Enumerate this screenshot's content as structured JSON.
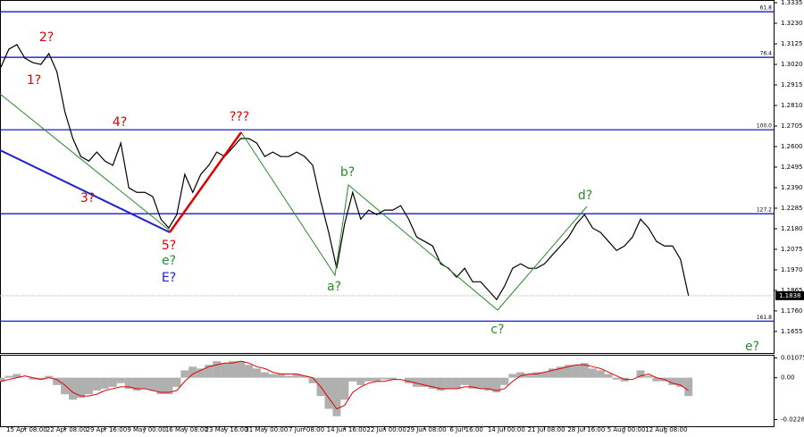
{
  "chart_data": [
    {
      "type": "line",
      "color": "#000000",
      "values": [
        1.3006,
        1.3098,
        1.3121,
        1.3052,
        1.3029,
        1.302,
        1.3075,
        1.2983,
        1.2778,
        1.2641,
        1.2549,
        1.2526,
        1.2572,
        1.2526,
        1.2504,
        1.2618,
        1.2389,
        1.2366,
        1.2366,
        1.2344,
        1.2229,
        1.2184,
        1.2252,
        1.2458,
        1.2366,
        1.2458,
        1.2504,
        1.2572,
        1.2549,
        1.2595,
        1.2641,
        1.2641,
        1.2618,
        1.2549,
        1.2572,
        1.2549,
        1.2549,
        1.2572,
        1.2549,
        1.2504,
        1.2321,
        1.2161,
        1.1978,
        1.2206,
        1.2366,
        1.2229,
        1.2275,
        1.2252,
        1.2275,
        1.2275,
        1.2298,
        1.2229,
        1.2138,
        1.2115,
        1.2092,
        1.2001,
        1.1978,
        1.1932,
        1.1978,
        1.1909,
        1.1909,
        1.1864,
        1.1818,
        1.1887,
        1.1978,
        1.2001,
        1.1978,
        1.1978,
        1.2001,
        1.2047,
        1.2092,
        1.2138,
        1.2206,
        1.2252,
        1.2184,
        1.2161,
        1.2115,
        1.2069,
        1.2092,
        1.2138,
        1.2229,
        1.2184,
        1.2115,
        1.2092,
        1.2092,
        1.2024,
        1.1838
      ],
      "ylim": [
        1.1545,
        1.3349
      ],
      "yticks": [
        1.3335,
        {
          "value": 1.323,
          "label": "1.3230"
        },
        1.3125,
        {
          "value": 1.302,
          "label": "1.3020"
        },
        1.2915,
        {
          "value": 1.281,
          "label": "1.2810"
        },
        1.2705,
        {
          "value": 1.26,
          "label": "1.2600"
        },
        1.2495,
        {
          "value": 1.239,
          "label": "1.2390"
        },
        1.2285,
        {
          "value": 1.218,
          "label": "1.2180"
        },
        1.2075,
        {
          "value": 1.197,
          "label": "1.1970"
        },
        1.1865,
        {
          "value": 1.176,
          "label": "1.1760"
        },
        1.1655
      ],
      "current_price": 1.1838,
      "levels": [
        {
          "label": "61.8",
          "value": 1.3289
        },
        {
          "label": "76.4",
          "value": 1.3056
        },
        {
          "label": "100.0",
          "value": 1.2686
        },
        {
          "label": "127.2",
          "value": 1.2257
        },
        {
          "label": "161.8",
          "value": 1.1708
        }
      ],
      "level_color": "#0000cc",
      "annotations": [
        {
          "text": "1?",
          "color": "#e00000"
        },
        {
          "text": "2?",
          "color": "#e00000"
        },
        {
          "text": "3?",
          "color": "#e00000"
        },
        {
          "text": "4?",
          "color": "#e00000"
        },
        {
          "text": "5?",
          "color": "#e00000"
        },
        {
          "text": "e?",
          "color": "#2a8a2a"
        },
        {
          "text": "E?",
          "color": "#2020d0"
        },
        {
          "text": "???",
          "color": "#e00000"
        },
        {
          "text": "a?",
          "color": "#2a8a2a"
        },
        {
          "text": "b?",
          "color": "#2a8a2a"
        },
        {
          "text": "c?",
          "color": "#2a8a2a"
        },
        {
          "text": "d?",
          "color": "#2a8a2a"
        },
        {
          "text": "e?",
          "color": "#2a8a2a"
        }
      ]
    },
    {
      "type": "bar",
      "color": "#b0b0b0",
      "signal_color": "#e00000",
      "categories": [
        null,
        null,
        null,
        "15 Apr 08:00",
        null,
        null,
        null,
        null,
        "22 Apr 08:00",
        null,
        null,
        null,
        null,
        "29 Apr 16:00",
        null,
        null,
        null,
        null,
        "9 May 00:00",
        null,
        null,
        null,
        null,
        "16 May 08:00",
        null,
        null,
        null,
        null,
        "23 May 16:00",
        null,
        null,
        null,
        null,
        "31 May 00:00",
        null,
        null,
        null,
        null,
        "7 Jun 08:00",
        null,
        null,
        null,
        null,
        "14 Jun 16:00",
        null,
        null,
        null,
        null,
        "22 Jun 00:00",
        null,
        null,
        null,
        null,
        "29 Jun 08:00",
        null,
        null,
        null,
        null,
        "6 Jul 16:00",
        null,
        null,
        null,
        null,
        "14 Jul 00:00",
        null,
        null,
        null,
        null,
        "21 Jul 08:00",
        null,
        null,
        null,
        null,
        "28 Jul 16:00",
        null,
        null,
        null,
        null,
        "5 Aug 00:00",
        null,
        null,
        null,
        null,
        "12 Aug 08:00",
        null,
        null,
        null
      ],
      "values": [
        -0.002,
        0.001,
        0.002,
        0.0,
        -0.001,
        -0.001,
        0.001,
        -0.004,
        -0.009,
        -0.012,
        -0.011,
        -0.009,
        -0.007,
        -0.006,
        -0.005,
        -0.003,
        -0.006,
        -0.007,
        -0.006,
        -0.007,
        -0.009,
        -0.009,
        -0.005,
        0.004,
        0.006,
        0.005,
        0.007,
        0.009,
        0.008,
        0.009,
        0.009,
        0.007,
        0.005,
        0.003,
        0.002,
        0.002,
        0.001,
        0.002,
        0.001,
        -0.003,
        -0.01,
        -0.017,
        -0.021,
        -0.012,
        -0.002,
        -0.004,
        -0.002,
        -0.002,
        -0.001,
        -0.001,
        0.0,
        -0.003,
        -0.005,
        -0.005,
        -0.006,
        -0.007,
        -0.006,
        -0.006,
        -0.004,
        -0.006,
        -0.006,
        -0.007,
        -0.008,
        -0.004,
        0.002,
        0.003,
        0.002,
        0.003,
        0.003,
        0.005,
        0.006,
        0.007,
        0.007,
        0.008,
        0.005,
        0.004,
        0.002,
        -0.001,
        -0.002,
        0.0,
        0.004,
        0.001,
        -0.002,
        -0.002,
        -0.004,
        -0.005,
        -0.01
      ],
      "signal_values": [
        -0.002,
        -0.001,
        0.0,
        0.001,
        0.0,
        -0.001,
        0.0,
        -0.001,
        -0.004,
        -0.008,
        -0.01,
        -0.01,
        -0.009,
        -0.007,
        -0.006,
        -0.005,
        -0.005,
        -0.006,
        -0.006,
        -0.007,
        -0.008,
        -0.008,
        -0.007,
        -0.002,
        0.002,
        0.004,
        0.006,
        0.007,
        0.008,
        0.008,
        0.009,
        0.008,
        0.006,
        0.005,
        0.003,
        0.002,
        0.002,
        0.002,
        0.001,
        0.0,
        -0.005,
        -0.011,
        -0.017,
        -0.015,
        -0.008,
        -0.005,
        -0.003,
        -0.002,
        -0.002,
        -0.001,
        -0.001,
        -0.002,
        -0.003,
        -0.004,
        -0.005,
        -0.006,
        -0.006,
        -0.006,
        -0.005,
        -0.005,
        -0.006,
        -0.006,
        -0.007,
        -0.006,
        -0.002,
        0.001,
        0.002,
        0.002,
        0.003,
        0.004,
        0.005,
        0.006,
        0.007,
        0.007,
        0.006,
        0.005,
        0.003,
        0.001,
        -0.001,
        -0.001,
        0.001,
        0.002,
        0.0,
        -0.001,
        -0.003,
        -0.004,
        -0.007
      ],
      "ylim": [
        -0.026,
        0.012
      ],
      "yticks": [
        0.01075,
        {
          "value": 0,
          "label": "0.00"
        },
        -0.02283
      ]
    }
  ]
}
